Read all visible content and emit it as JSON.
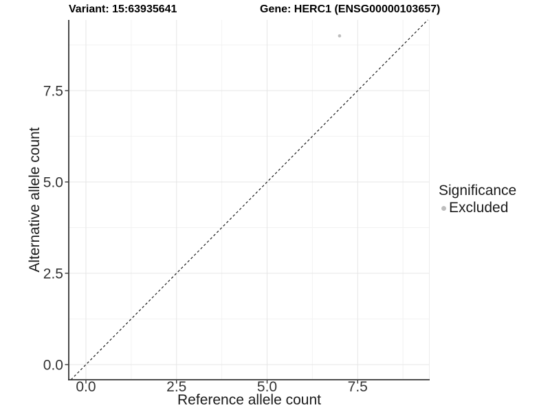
{
  "chart": {
    "title_left": "Variant: 15:63935641",
    "title_right": "Gene: HERC1 (ENSG00000103657)"
  },
  "chart_data": {
    "type": "scatter",
    "title": "Variant: 15:63935641    Gene: HERC1 (ENSG00000103657)",
    "xlabel": "Reference allele count",
    "ylabel": "Alternative allele count",
    "xlim": [
      -0.474,
      9.487
    ],
    "ylim": [
      -0.414,
      9.436
    ],
    "x_ticks": [
      0.0,
      2.5,
      5.0,
      7.5
    ],
    "x_tick_labels": [
      "0.0",
      "2.5",
      "5.0",
      "7.5"
    ],
    "y_ticks": [
      0.0,
      2.5,
      5.0,
      7.5
    ],
    "y_tick_labels": [
      "0.0",
      "2.5",
      "5.0",
      "7.5"
    ],
    "minor_step": 1.25,
    "grid": true,
    "series": [
      {
        "name": "Excluded",
        "color": "#bdbdbd",
        "points": [
          {
            "x": 7,
            "y": 9
          }
        ]
      }
    ],
    "reference_line": {
      "type": "abline",
      "slope": 1,
      "intercept": 0,
      "style": "dashed",
      "color": "#1a1a1a"
    },
    "legend": {
      "title": "Significance",
      "position": "right",
      "items": [
        {
          "label": "Excluded",
          "color": "#bdbdbd"
        }
      ]
    },
    "colors": {
      "grid_major": "#e5e5e5",
      "grid_minor": "#f2f2f2",
      "panel_edge": "#ececec",
      "axis_line": "#333333",
      "tick_text": "#333333",
      "title_text": "#000000"
    }
  }
}
